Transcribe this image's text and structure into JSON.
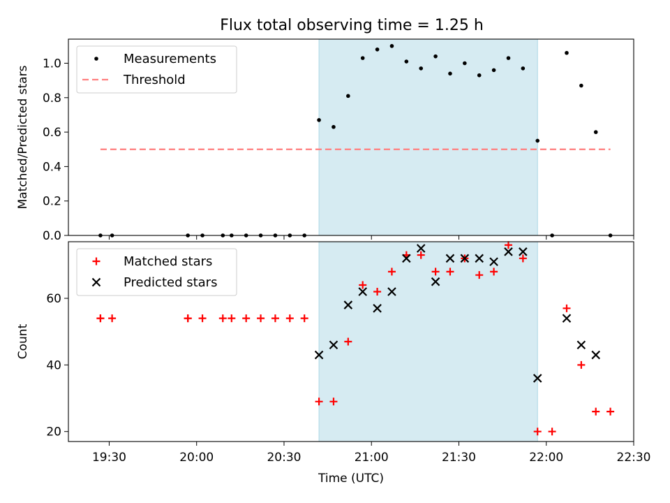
{
  "chart_data": [
    {
      "type": "scatter",
      "title": "Flux total observing time = 1.25 h",
      "xlabel": "",
      "ylabel": "Matched/Predicted stars",
      "ylim": [
        0,
        1.14
      ],
      "yticks": [
        0.0,
        0.2,
        0.4,
        0.6,
        0.8,
        1.0
      ],
      "ytick_labels": [
        "0.0",
        "0.2",
        "0.4",
        "0.6",
        "0.8",
        "1.0"
      ],
      "legend_position": "top-left",
      "shaded_span": {
        "from": "20:42",
        "to": "21:57",
        "color": "#add8e6"
      },
      "series": [
        {
          "name": "Measurements",
          "marker": "dot",
          "color": "#000000",
          "x": [
            "19:27",
            "19:31",
            "19:57",
            "20:02",
            "20:09",
            "20:12",
            "20:17",
            "20:22",
            "20:27",
            "20:32",
            "20:37",
            "20:42",
            "20:47",
            "20:52",
            "20:57",
            "21:02",
            "21:07",
            "21:12",
            "21:17",
            "21:22",
            "21:27",
            "21:32",
            "21:37",
            "21:42",
            "21:47",
            "21:52",
            "21:57",
            "22:02",
            "22:07",
            "22:12",
            "22:17",
            "22:22"
          ],
          "y": [
            0.0,
            0.0,
            0.0,
            0.0,
            0.0,
            0.0,
            0.0,
            0.0,
            0.0,
            0.0,
            0.0,
            0.67,
            0.63,
            0.81,
            1.03,
            1.08,
            1.1,
            1.01,
            0.97,
            1.04,
            0.94,
            1.0,
            0.93,
            0.96,
            1.03,
            0.97,
            0.55,
            0.0,
            1.06,
            0.87,
            0.6,
            0.0
          ]
        },
        {
          "name": "Threshold",
          "marker": "dashed-line",
          "color": "#ff7f7f",
          "x": [
            "19:27",
            "22:22"
          ],
          "y": [
            0.5,
            0.5
          ]
        }
      ]
    },
    {
      "type": "scatter",
      "title": "",
      "xlabel": "Time (UTC)",
      "ylabel": "Count",
      "ylim": [
        17,
        77
      ],
      "yticks": [
        20,
        40,
        60
      ],
      "ytick_labels": [
        "20",
        "40",
        "60"
      ],
      "xlim": [
        "19:16",
        "22:30"
      ],
      "xtick_labels": [
        "19:30",
        "20:00",
        "20:30",
        "21:00",
        "21:30",
        "22:00",
        "22:30"
      ],
      "legend_position": "top-left",
      "shaded_span": {
        "from": "20:42",
        "to": "21:57",
        "color": "#add8e6"
      },
      "series": [
        {
          "name": "Matched stars",
          "marker": "plus",
          "color": "#ff0000",
          "x": [
            "19:27",
            "19:27",
            "19:31",
            "19:57",
            "19:57",
            "20:02",
            "20:09",
            "20:12",
            "20:17",
            "20:22",
            "20:27",
            "20:32",
            "20:37",
            "20:42",
            "20:47",
            "20:52",
            "20:57",
            "21:02",
            "21:07",
            "21:12",
            "21:17",
            "21:22",
            "21:27",
            "21:32",
            "21:37",
            "21:42",
            "21:47",
            "21:52",
            "21:57",
            "22:02",
            "22:07",
            "22:12",
            "22:17",
            "22:22"
          ],
          "y": [
            54,
            54,
            54,
            54,
            54,
            54,
            54,
            54,
            54,
            54,
            54,
            54,
            54,
            29,
            29,
            47,
            64,
            62,
            68,
            73,
            73,
            68,
            68,
            72,
            67,
            68,
            76,
            72,
            20,
            20,
            57,
            40,
            26,
            26
          ]
        },
        {
          "name": "Predicted stars",
          "marker": "x",
          "color": "#000000",
          "x": [
            "20:42",
            "20:47",
            "20:52",
            "20:57",
            "21:02",
            "21:07",
            "21:12",
            "21:17",
            "21:22",
            "21:27",
            "21:32",
            "21:37",
            "21:42",
            "21:47",
            "21:52",
            "21:57",
            "22:07",
            "22:12",
            "22:17"
          ],
          "y": [
            43,
            46,
            58,
            62,
            57,
            62,
            72,
            75,
            65,
            72,
            72,
            72,
            71,
            74,
            74,
            36,
            54,
            46,
            43
          ]
        }
      ]
    }
  ]
}
